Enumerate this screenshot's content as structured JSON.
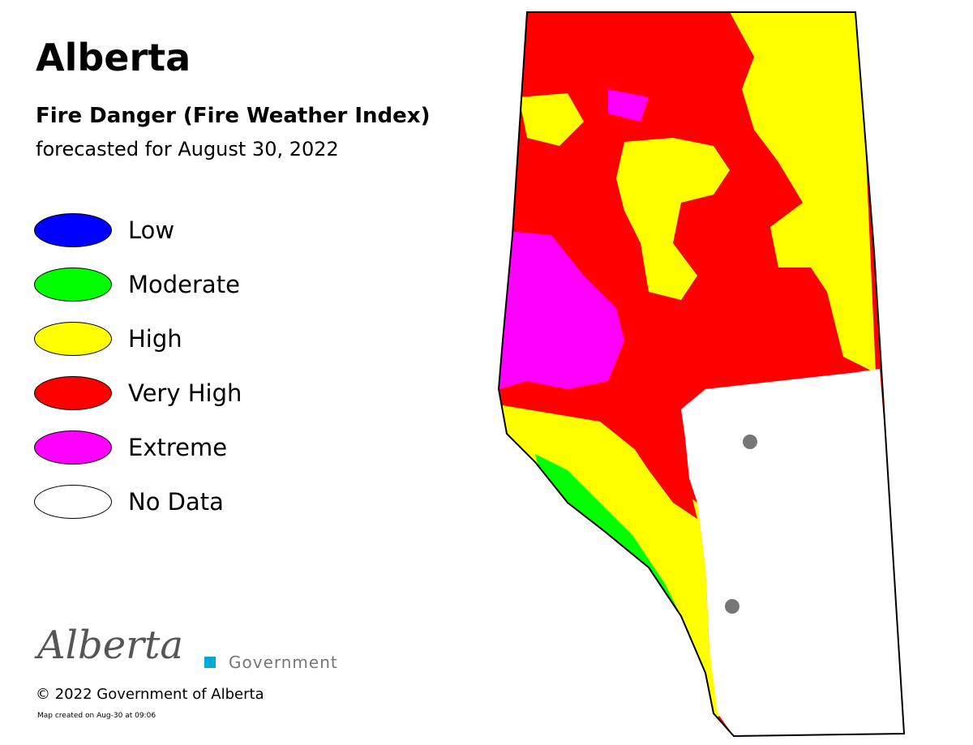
{
  "header": {
    "title": "Alberta",
    "subtitle": "Fire Danger (Fire Weather Index)",
    "date": "forecasted for August 30, 2022"
  },
  "legend": {
    "items": [
      {
        "label": "Low",
        "color": "#0000ff"
      },
      {
        "label": "Moderate",
        "color": "#00ff00"
      },
      {
        "label": "High",
        "color": "#ffff00"
      },
      {
        "label": "Very High",
        "color": "#ff0000"
      },
      {
        "label": "Extreme",
        "color": "#ff00ff"
      },
      {
        "label": "No Data",
        "color": "#ffffff"
      }
    ]
  },
  "footer": {
    "logo": "Alberta",
    "logo_suffix": "Government",
    "copyright": "© 2022 Government of Alberta",
    "created": "Map created on Aug-30 at 09:06"
  }
}
